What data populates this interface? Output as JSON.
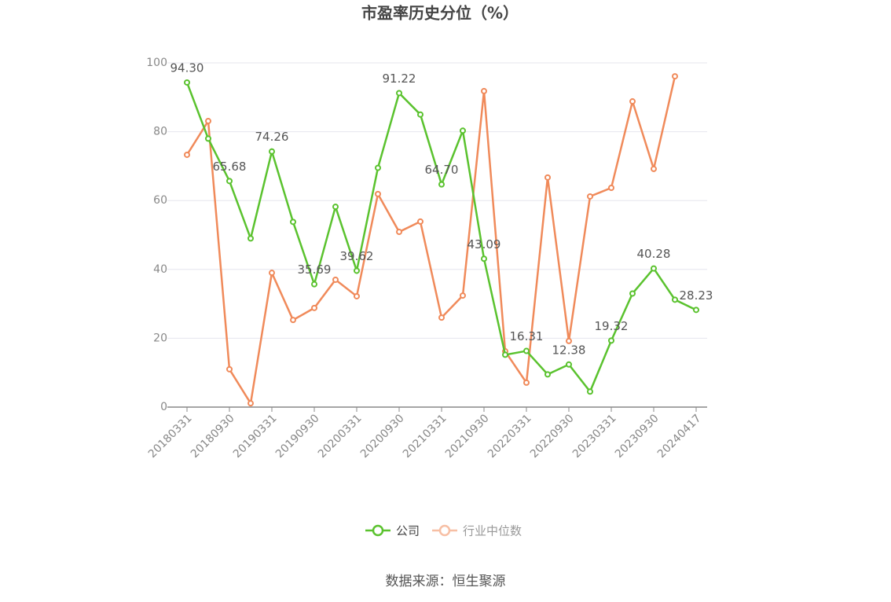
{
  "chart_data": {
    "type": "line",
    "title": "市盈率历史分位（%）",
    "source": "数据来源：恒生聚源",
    "categories": [
      "20180331",
      null,
      "20180930",
      null,
      "20190331",
      null,
      "20190930",
      null,
      "20200331",
      null,
      "20200930",
      null,
      "20210331",
      null,
      "20210930",
      null,
      "20220331",
      null,
      "20220930",
      null,
      "20230331",
      null,
      "20230930",
      null,
      "20240417"
    ],
    "series": [
      {
        "name": "公司",
        "color": "#5ac22e",
        "values": [
          94.3,
          78,
          65.68,
          49,
          74.26,
          53.8,
          35.69,
          58.2,
          39.62,
          69.5,
          91.22,
          85,
          64.7,
          80.3,
          43.09,
          15.2,
          16.31,
          9.5,
          12.38,
          4.5,
          19.32,
          33,
          40.28,
          31.2,
          28.23
        ],
        "value_labels": [
          "94.30",
          null,
          "65.68",
          null,
          "74.26",
          null,
          "35.69",
          null,
          "39.62",
          null,
          "91.22",
          null,
          "64.70",
          null,
          "43.09",
          null,
          "16.31",
          null,
          "12.38",
          null,
          "19.32",
          null,
          "40.28",
          null,
          "28.23"
        ]
      },
      {
        "name": "行业中位数",
        "color": "#f08a5a",
        "values": [
          73.3,
          83.1,
          11,
          1.1,
          39,
          25.3,
          28.8,
          37,
          32.2,
          61.9,
          50.9,
          53.9,
          26,
          32.4,
          91.8,
          16.2,
          7.1,
          66.7,
          19.2,
          61.2,
          63.7,
          88.8,
          69.2,
          96.1,
          null
        ]
      }
    ],
    "ylim": [
      0,
      100
    ],
    "yticks": [
      0,
      20,
      40,
      60,
      80,
      100
    ],
    "grid": true,
    "legend": "bottom"
  }
}
